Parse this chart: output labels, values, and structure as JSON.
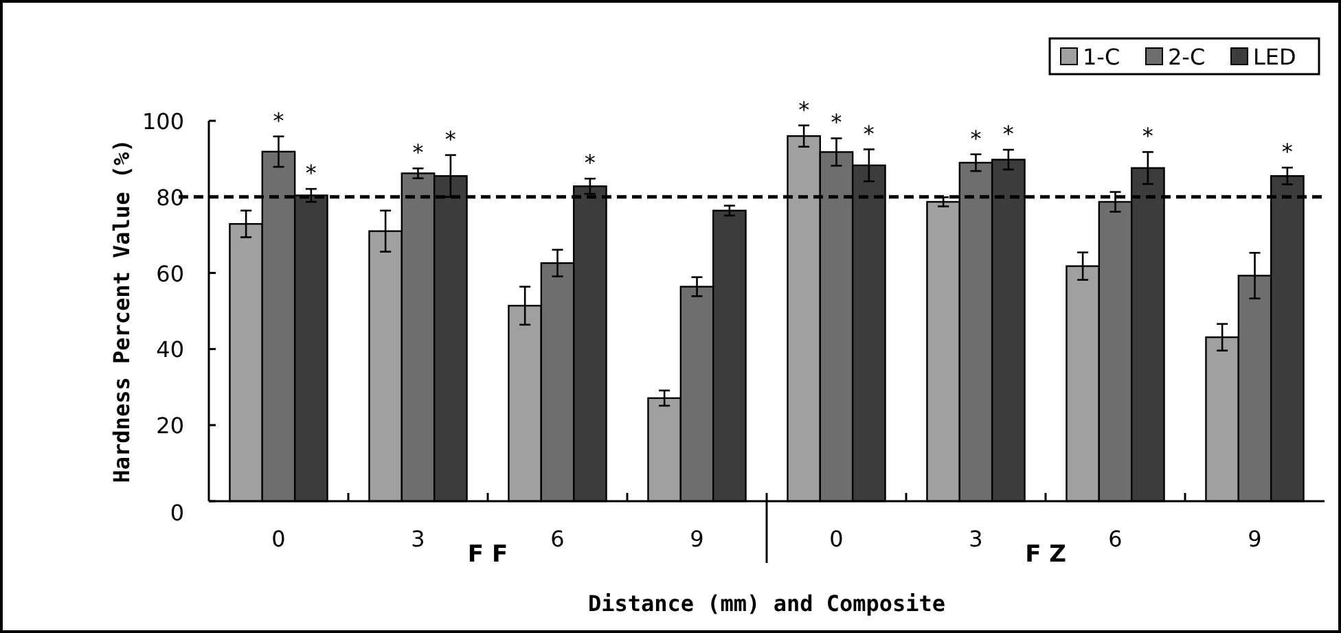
{
  "chart_data": {
    "type": "bar",
    "xlabel": "Distance (mm) and Composite",
    "ylabel": "Hardness Percent Value (%)",
    "categories": [
      "0",
      "3",
      "6",
      "9",
      "0",
      "3",
      "6",
      "9"
    ],
    "series": [
      {
        "name": "1-C",
        "color": "#a0a0a0",
        "values": [
          72.9,
          71,
          51.4,
          27.1,
          96,
          78.7,
          61.8,
          43.1
        ],
        "errors": [
          3.5,
          5.4,
          5,
          2,
          2.8,
          1.2,
          3.6,
          3.5
        ],
        "value_labels": [
          null,
          null,
          null,
          null,
          "*",
          null,
          null,
          null
        ]
      },
      {
        "name": "2-C",
        "color": "#6e6e6e",
        "values": [
          91.9,
          86.2,
          62.6,
          56.4,
          91.8,
          89,
          78.7,
          59.3
        ],
        "errors": [
          4,
          1.3,
          3.5,
          2.5,
          3.6,
          2.2,
          2.6,
          6
        ],
        "value_labels": [
          "*",
          "*",
          null,
          null,
          "*",
          "*",
          null,
          null
        ]
      },
      {
        "name": "LED",
        "color": "#3c3c3c",
        "values": [
          80.4,
          85.5,
          82.8,
          76.4,
          88.3,
          89.8,
          87.6,
          85.5
        ],
        "errors": [
          1.7,
          5.5,
          2,
          1.3,
          4.2,
          2.6,
          4.2,
          2.2
        ],
        "value_labels": [
          "*",
          "*",
          "*",
          null,
          "*",
          "*",
          "*",
          "*"
        ]
      }
    ],
    "ylim": [
      0,
      100
    ],
    "yticks": [
      0,
      20,
      40,
      60,
      80,
      100
    ],
    "ref_lines": [
      {
        "axis": "y",
        "value": 80,
        "line_style": "dashed",
        "color": "#000000"
      }
    ],
    "annotations": [
      "F F",
      "F Z"
    ],
    "legend": "top right",
    "grid": false
  }
}
